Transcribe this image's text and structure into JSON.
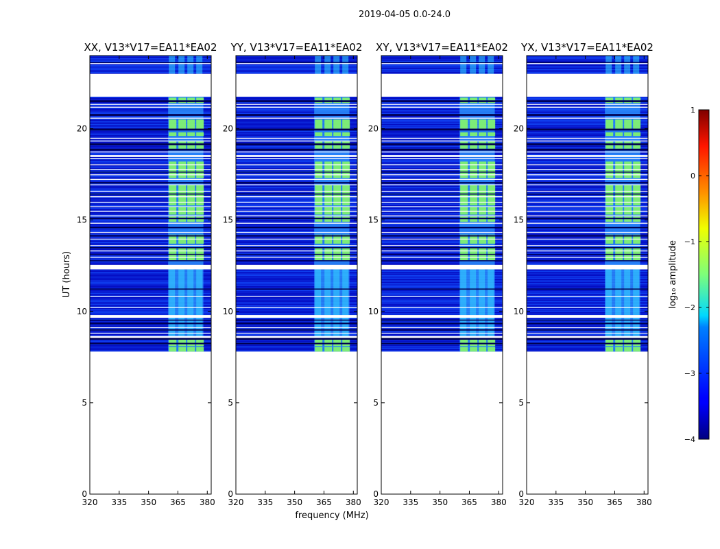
{
  "figure": {
    "title": "2019-04-05 0.0-24.0",
    "ylabel": "UT (hours)",
    "xlabel": "frequency (MHz)",
    "colorbar_label": "log₁₀ amplitude"
  },
  "chart_data": {
    "type": "heatmap",
    "x": {
      "min": 320,
      "max": 382,
      "ticks": [
        320,
        335,
        350,
        365,
        380
      ],
      "tick_labels": [
        "320",
        "335",
        "350",
        "365",
        "380"
      ]
    },
    "y": {
      "min": 0,
      "max": 24,
      "ticks": [
        0,
        5,
        10,
        15,
        20
      ],
      "tick_labels": [
        "0",
        "5",
        "10",
        "15",
        "20"
      ]
    },
    "color_scale": {
      "min": -4,
      "max": 1,
      "ticks": [
        1,
        0,
        -1,
        -2,
        -3,
        -4
      ],
      "tick_labels": [
        "1",
        "0",
        "−1",
        "−2",
        "−3",
        "−4"
      ],
      "colormap": "jet"
    },
    "data_start_hour": 7.8,
    "data_end_hour": 24.0,
    "bright_band_mhz": [
      360,
      378
    ],
    "panels": [
      {
        "id": "xx",
        "title": "XX, V13*V17=EA11*EA02"
      },
      {
        "id": "yy",
        "title": "YY, V13*V17=EA11*EA02"
      },
      {
        "id": "xy",
        "title": "XY, V13*V17=EA11*EA02"
      },
      {
        "id": "yx",
        "title": "YX, V13*V17=EA11*EA02"
      }
    ],
    "white_gaps_hours": [
      [
        21.75,
        23.0
      ],
      [
        12.3,
        12.55
      ],
      [
        9.65,
        9.8
      ],
      [
        8.55,
        8.65
      ],
      [
        18.45,
        18.55
      ],
      [
        21.3,
        21.35
      ],
      [
        21.15,
        21.2
      ],
      [
        20.55,
        20.6
      ],
      [
        19.45,
        19.5
      ],
      [
        19.3,
        19.35
      ],
      [
        18.7,
        18.75
      ],
      [
        18.35,
        18.4
      ],
      [
        18.0,
        18.05
      ],
      [
        17.75,
        17.8
      ],
      [
        17.45,
        17.5
      ],
      [
        17.2,
        17.25
      ],
      [
        16.9,
        16.95
      ],
      [
        16.55,
        16.6
      ],
      [
        16.25,
        16.3
      ],
      [
        15.95,
        16.0
      ],
      [
        15.7,
        15.75
      ],
      [
        15.45,
        15.5
      ],
      [
        15.2,
        15.25
      ],
      [
        14.8,
        14.85
      ],
      [
        14.3,
        14.35
      ],
      [
        13.95,
        13.98
      ],
      [
        13.6,
        13.63
      ],
      [
        13.3,
        13.33
      ],
      [
        12.95,
        12.98
      ],
      [
        10.8,
        10.83
      ],
      [
        10.2,
        10.23
      ],
      [
        9.1,
        9.13
      ],
      [
        8.8,
        8.83
      ],
      [
        23.55,
        23.58
      ]
    ],
    "dark_rows_hours": [
      [
        23.6,
        23.65
      ],
      [
        21.45,
        21.55
      ],
      [
        20.7,
        20.8
      ],
      [
        19.9,
        20.0
      ],
      [
        19.1,
        19.2
      ],
      [
        18.8,
        18.9
      ],
      [
        17.6,
        17.65
      ],
      [
        17.0,
        17.08
      ],
      [
        16.4,
        16.45
      ],
      [
        15.05,
        15.12
      ],
      [
        14.55,
        14.62
      ],
      [
        14.1,
        14.17
      ],
      [
        13.45,
        13.52
      ],
      [
        13.1,
        13.15
      ],
      [
        12.75,
        12.8
      ],
      [
        11.2,
        11.25
      ],
      [
        9.5,
        9.55
      ],
      [
        9.3,
        9.38
      ],
      [
        8.95,
        9.02
      ],
      [
        8.45,
        8.55
      ],
      [
        8.2,
        8.28
      ]
    ]
  }
}
